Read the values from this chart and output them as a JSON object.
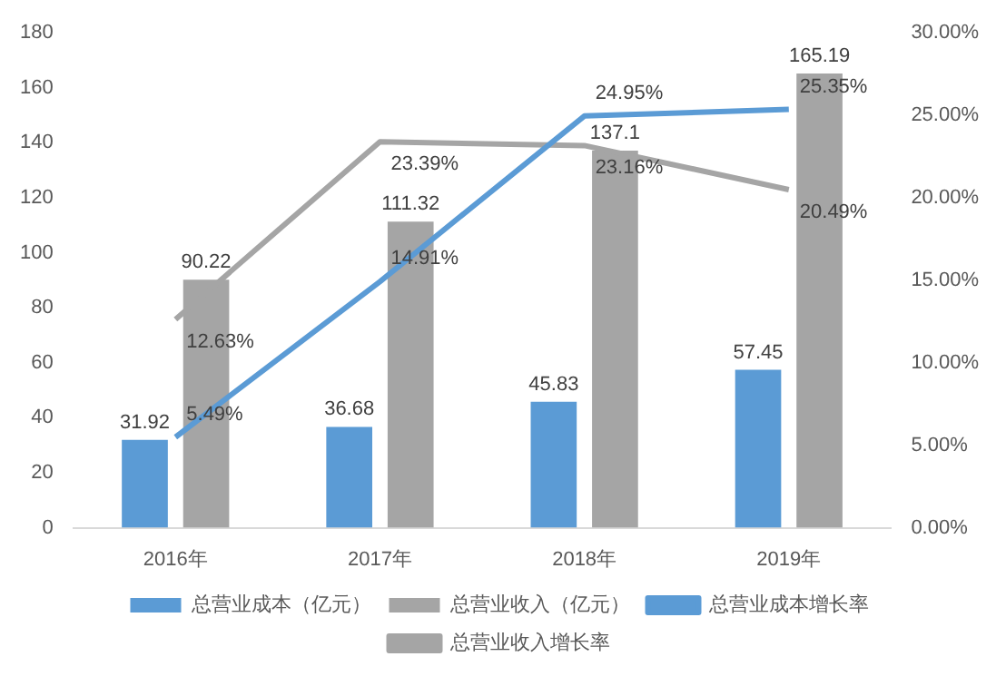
{
  "chart_data": {
    "type": "bar",
    "categories": [
      "2016年",
      "2017年",
      "2018年",
      "2019年"
    ],
    "series": [
      {
        "name": "总营业成本（亿元）",
        "color": "#5b9bd5",
        "values": [
          31.92,
          36.68,
          45.83,
          57.45
        ],
        "value_labels": [
          "31.92",
          "36.68",
          "45.83",
          "57.45"
        ]
      },
      {
        "name": "总营业收入（亿元）",
        "color": "#a5a5a5",
        "values": [
          90.22,
          111.32,
          137.1,
          165.19
        ],
        "value_labels": [
          "90.22",
          "111.32",
          "137.1",
          "165.19"
        ]
      },
      {
        "name": "总营业成本增长率",
        "type": "line",
        "axis": "y2",
        "color": "#5b9bd5",
        "values": [
          5.49,
          14.91,
          24.95,
          25.35
        ],
        "value_labels": [
          "5.49%",
          "14.91%",
          "24.95%",
          "25.35%"
        ]
      },
      {
        "name": "总营业收入增长率",
        "type": "line",
        "axis": "y2",
        "color": "#a5a5a5",
        "values": [
          12.63,
          23.39,
          23.16,
          20.49
        ],
        "value_labels": [
          "12.63%",
          "23.39%",
          "23.16%",
          "20.49%"
        ]
      }
    ],
    "ylim": [
      0,
      180
    ],
    "yticks": [
      0,
      20,
      40,
      60,
      80,
      100,
      120,
      140,
      160,
      180
    ],
    "y2lim": [
      0,
      30
    ],
    "y2ticks": [
      {
        "value": 0,
        "label": "0.00%"
      },
      {
        "value": 5,
        "label": "5.00%"
      },
      {
        "value": 10,
        "label": "10.00%"
      },
      {
        "value": 15,
        "label": "15.00%"
      },
      {
        "value": 20,
        "label": "20.00%"
      },
      {
        "value": 25,
        "label": "25.00%"
      },
      {
        "value": 30,
        "label": "30.00%"
      }
    ],
    "grid": false,
    "legend": "bottom",
    "marker": "none"
  }
}
